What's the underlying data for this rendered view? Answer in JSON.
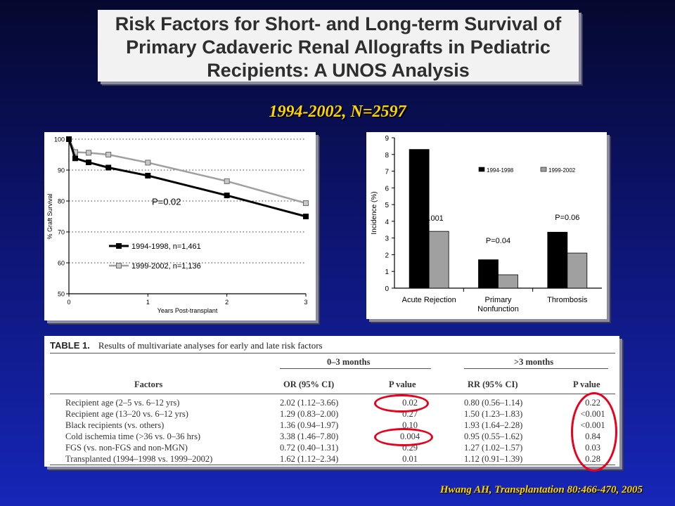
{
  "title": {
    "lines": [
      "Risk Factors for Short- and Long-term Survival of",
      "Primary Cadaveric Renal Allografts in Pediatric",
      "Recipients: A UNOS Analysis"
    ]
  },
  "subtitle": "1994-2002,   N=2597",
  "citation": "Hwang AH, Transplantation 80:466-470, 2005",
  "chart_data": [
    {
      "type": "line",
      "title": "",
      "xlabel": "Years Post-transplant",
      "ylabel": "% Graft Survival",
      "xlim": [
        0,
        3
      ],
      "ylim": [
        50,
        100
      ],
      "x_ticks": [
        "0",
        "1",
        "2",
        "3"
      ],
      "y_ticks": [
        "50",
        "60",
        "70",
        "80",
        "90",
        "100"
      ],
      "grid": "dotted horizontal",
      "annotation": "P=0.02",
      "series": [
        {
          "name": "1994-1998, n=1,461",
          "color": "#000000",
          "x": [
            0,
            0.08,
            0.25,
            0.5,
            1,
            2,
            3
          ],
          "y": [
            100,
            93.8,
            92.5,
            90.8,
            88.2,
            81.8,
            75.0
          ]
        },
        {
          "name": "1999-2002, n=1,136",
          "color": "#a0a0a0",
          "x": [
            0,
            0.08,
            0.25,
            0.5,
            1,
            2,
            3
          ],
          "y": [
            100,
            95.8,
            95.6,
            95.0,
            92.4,
            86.4,
            79.3
          ]
        }
      ]
    },
    {
      "type": "bar",
      "title": "",
      "xlabel": "",
      "ylabel": "Incidence (%)",
      "ylim": [
        0,
        9
      ],
      "y_ticks": [
        "0",
        "1",
        "2",
        "3",
        "4",
        "5",
        "6",
        "7",
        "8",
        "9"
      ],
      "categories": [
        "Acute Rejection",
        "Primary Nonfunction",
        "Thrombosis"
      ],
      "category_lines": [
        [
          "Acute Rejection"
        ],
        [
          "Primary",
          "Nonfunction"
        ],
        [
          "Thrombosis"
        ]
      ],
      "annotations": [
        "P<0.001",
        "P=0.04",
        "P=0.06"
      ],
      "legend": "top-right",
      "series": [
        {
          "name": "1994-1998",
          "color": "#000000",
          "values": [
            8.3,
            1.7,
            3.35
          ]
        },
        {
          "name": "1999-2002",
          "color": "#a0a0a0",
          "values": [
            3.4,
            0.8,
            2.1
          ]
        }
      ]
    }
  ],
  "table": {
    "label": "TABLE 1.",
    "caption": "Results of multivariate analyses for early and late risk factors",
    "group_headers": [
      "0–3 months",
      ">3 months"
    ],
    "columns": [
      "Factors",
      "OR (95% CI)",
      "P value",
      "RR (95% CI)",
      "P value"
    ],
    "rows": [
      [
        "Recipient age (2–5 vs. 6–12 yrs)",
        "2.02 (1.12–3.66)",
        "0.02",
        "0.80 (0.56–1.14)",
        "0.22"
      ],
      [
        "Recipient age (13–20 vs. 6–12 yrs)",
        "1.29 (0.83–2.00)",
        "0.27",
        "1.50 (1.23–1.83)",
        "<0.001"
      ],
      [
        "Black recipients (vs. others)",
        "1.36 (0.94–1.97)",
        "0.10",
        "1.93 (1.64–2.28)",
        "<0.001"
      ],
      [
        "Cold ischemia time (>36 vs. 0–36 hrs)",
        "3.38 (1.46–7.80)",
        "0.004",
        "0.95 (0.55–1.62)",
        "0.84"
      ],
      [
        "FGS (vs. non-FGS and non-MGN)",
        "0.72 (0.40–1.31)",
        "0.29",
        "1.27 (1.02–1.57)",
        "0.03"
      ],
      [
        "Transplanted (1994–1998 vs. 1999–2002)",
        "1.62 (1.12–2.34)",
        "0.01",
        "1.12 (0.91–1.39)",
        "0.28"
      ]
    ]
  },
  "colors": {
    "highlight": "#e8001c",
    "accent": "#ffd400"
  }
}
